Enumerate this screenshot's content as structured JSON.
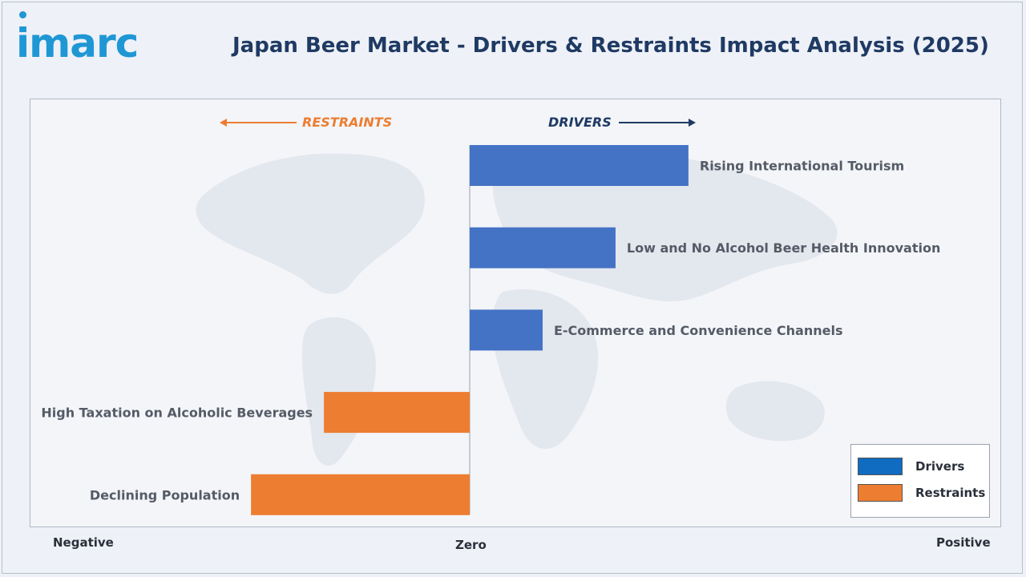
{
  "header": {
    "logo_text": "imarc",
    "title": "Japan Beer Market - Drivers & Restraints Impact Analysis (2025)"
  },
  "direction_labels": {
    "restraints": "RESTRAINTS",
    "drivers": "DRIVERS"
  },
  "axis_words": {
    "negative": "Negative",
    "zero": "Zero",
    "positive": "Positive"
  },
  "legend": {
    "items": [
      {
        "label": "Drivers",
        "color": "#0f6cc0"
      },
      {
        "label": "Restraints",
        "color": "#ed7d31"
      }
    ]
  },
  "chart_data": {
    "type": "bar",
    "orientation": "horizontal",
    "title": "Japan Beer Market - Drivers & Restraints Impact Analysis (2025)",
    "categories": [
      "Rising International Tourism",
      "Low and No Alcohol Beer Health Innovation",
      "E-Commerce and Convenience Channels",
      "High Taxation on Alcoholic Beverages",
      "Declining Population"
    ],
    "series": [
      {
        "name": "Drivers",
        "color": "#4472c4",
        "values": [
          3.0,
          2.0,
          1.0,
          null,
          null
        ]
      },
      {
        "name": "Restraints",
        "color": "#ed7d31",
        "values": [
          null,
          null,
          null,
          -2.0,
          -3.0
        ]
      }
    ],
    "xlim": [
      -6,
      7.3
    ],
    "grid": false,
    "legend_position": "bottom-right"
  }
}
